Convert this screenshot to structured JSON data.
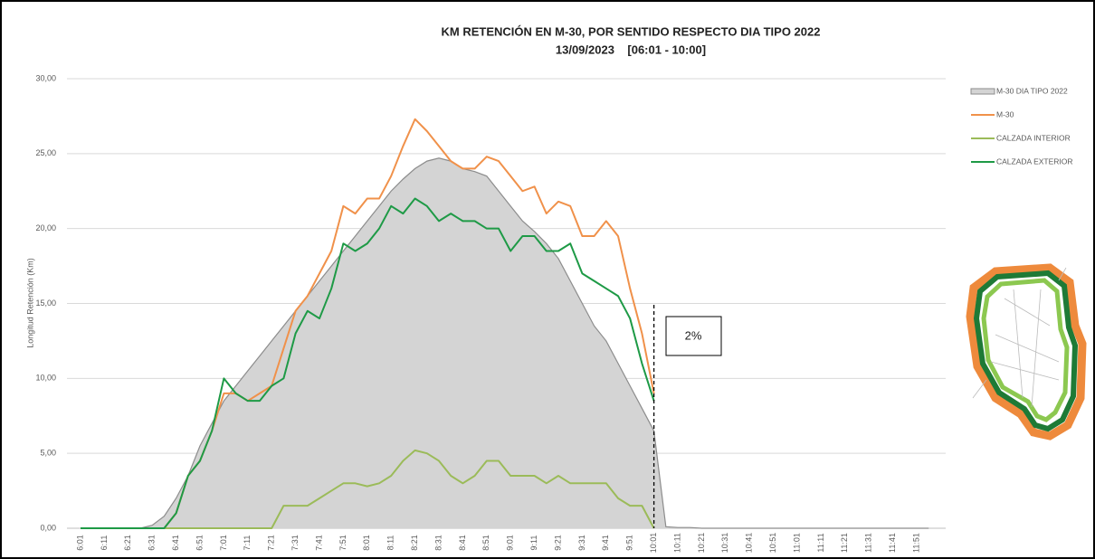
{
  "chart_data": {
    "type": "area-line",
    "title": "KM RETENCIÓN EN M-30, POR SENTIDO RESPECTO DIA TIPO 2022",
    "subtitle": "13/09/2023    [06:01 - 10:00]",
    "y_label": "Longitud Retención (Km)",
    "annotation": "2%",
    "grid": true,
    "legend": "right",
    "ylim": [
      0,
      30
    ],
    "yticks": [
      {
        "value": 0,
        "label": "0,00"
      },
      {
        "value": 5,
        "label": "5,00"
      },
      {
        "value": 10,
        "label": "10,00"
      },
      {
        "value": 15,
        "label": "15,00"
      },
      {
        "value": 20,
        "label": "20,00"
      },
      {
        "value": 25,
        "label": "25,00"
      },
      {
        "value": 30,
        "label": "30,00"
      }
    ],
    "categories": [
      "6:01",
      null,
      "6:11",
      null,
      "6:21",
      null,
      "6:31",
      null,
      "6:41",
      null,
      "6:51",
      null,
      "7:01",
      null,
      "7:11",
      null,
      "7:21",
      null,
      "7:31",
      null,
      "7:41",
      null,
      "7:51",
      null,
      "8:01",
      null,
      "8:11",
      null,
      "8:21",
      null,
      "8:31",
      null,
      "8:41",
      null,
      "8:51",
      null,
      "9:01",
      null,
      "9:11",
      null,
      "9:21",
      null,
      "9:31",
      null,
      "9:41",
      null,
      "9:51",
      null,
      "10:01",
      null,
      "10:11",
      null,
      "10:21",
      null,
      "10:31",
      null,
      "10:41",
      null,
      "10:51",
      null,
      "11:01",
      null,
      "11:11",
      null,
      "11:21",
      null,
      "11:31",
      null,
      "11:41",
      null,
      "11:51",
      null
    ],
    "series": [
      {
        "name": "M-30 DIA TIPO 2022",
        "kind": "area",
        "color": "#d4d4d4",
        "values": [
          0,
          0,
          0,
          0,
          0,
          0,
          0.2,
          0.8,
          2,
          3.5,
          5.5,
          7,
          8.5,
          9.5,
          10.5,
          11.5,
          12.5,
          13.5,
          14.5,
          15.5,
          16.5,
          17.5,
          18.5,
          19.5,
          20.5,
          21.5,
          22.5,
          23.3,
          24,
          24.5,
          24.7,
          24.5,
          24,
          23.8,
          23.5,
          22.5,
          21.5,
          20.5,
          19.8,
          19,
          18,
          16.5,
          15,
          13.5,
          12.5,
          11,
          9.5,
          8,
          6.5,
          0.1,
          0.05,
          0.05,
          0,
          0,
          0,
          0,
          0,
          0,
          0,
          0,
          0,
          0,
          0,
          0,
          0,
          0,
          0,
          0,
          0,
          0,
          0,
          0
        ]
      },
      {
        "name": "M-30",
        "kind": "line",
        "color": "#f0914a",
        "values": [
          0,
          0,
          0,
          0,
          0,
          0,
          0,
          0,
          1,
          3.5,
          4.5,
          6.5,
          9,
          9,
          8.5,
          9,
          9.5,
          12,
          14.5,
          15.5,
          17,
          18.5,
          21.5,
          21,
          22,
          22,
          23.5,
          25.5,
          27.3,
          26.5,
          25.5,
          24.5,
          24,
          24,
          24.8,
          24.5,
          23.5,
          22.5,
          22.8,
          21,
          21.8,
          21.5,
          19.5,
          19.5,
          20.5,
          19.5,
          16,
          13,
          9,
          null,
          null,
          null,
          null,
          null,
          null,
          null,
          null,
          null,
          null,
          null,
          null,
          null,
          null,
          null,
          null,
          null,
          null,
          null,
          null,
          null,
          null,
          null
        ]
      },
      {
        "name": "CALZADA INTERIOR",
        "kind": "line",
        "color": "#9bbb59",
        "values": [
          0,
          0,
          0,
          0,
          0,
          0,
          0,
          0,
          0,
          0,
          0,
          0,
          0,
          0,
          0,
          0,
          0,
          1.5,
          1.5,
          1.5,
          2,
          2.5,
          3,
          3,
          2.8,
          3,
          3.5,
          4.5,
          5.2,
          5,
          4.5,
          3.5,
          3,
          3.5,
          4.5,
          4.5,
          3.5,
          3.5,
          3.5,
          3,
          3.5,
          3,
          3,
          3,
          3,
          2,
          1.5,
          1.5,
          0,
          null,
          null,
          null,
          null,
          null,
          null,
          null,
          null,
          null,
          null,
          null,
          null,
          null,
          null,
          null,
          null,
          null,
          null,
          null,
          null,
          null,
          null,
          null
        ]
      },
      {
        "name": "CALZADA EXTERIOR",
        "kind": "line",
        "color": "#1e9a46",
        "values": [
          0,
          0,
          0,
          0,
          0,
          0,
          0,
          0,
          1,
          3.5,
          4.5,
          6.5,
          10,
          9,
          8.5,
          8.5,
          9.5,
          10,
          13,
          14.5,
          14,
          16,
          19,
          18.5,
          19,
          20,
          21.5,
          21,
          22,
          21.5,
          20.5,
          21,
          20.5,
          20.5,
          20,
          20,
          18.5,
          19.5,
          19.5,
          18.5,
          18.5,
          19,
          17,
          16.5,
          16,
          15.5,
          14,
          11,
          8.5,
          null,
          null,
          null,
          null,
          null,
          null,
          null,
          null,
          null,
          null,
          null,
          null,
          null,
          null,
          null,
          null,
          null,
          null,
          null,
          null,
          null,
          null,
          null
        ]
      }
    ]
  }
}
